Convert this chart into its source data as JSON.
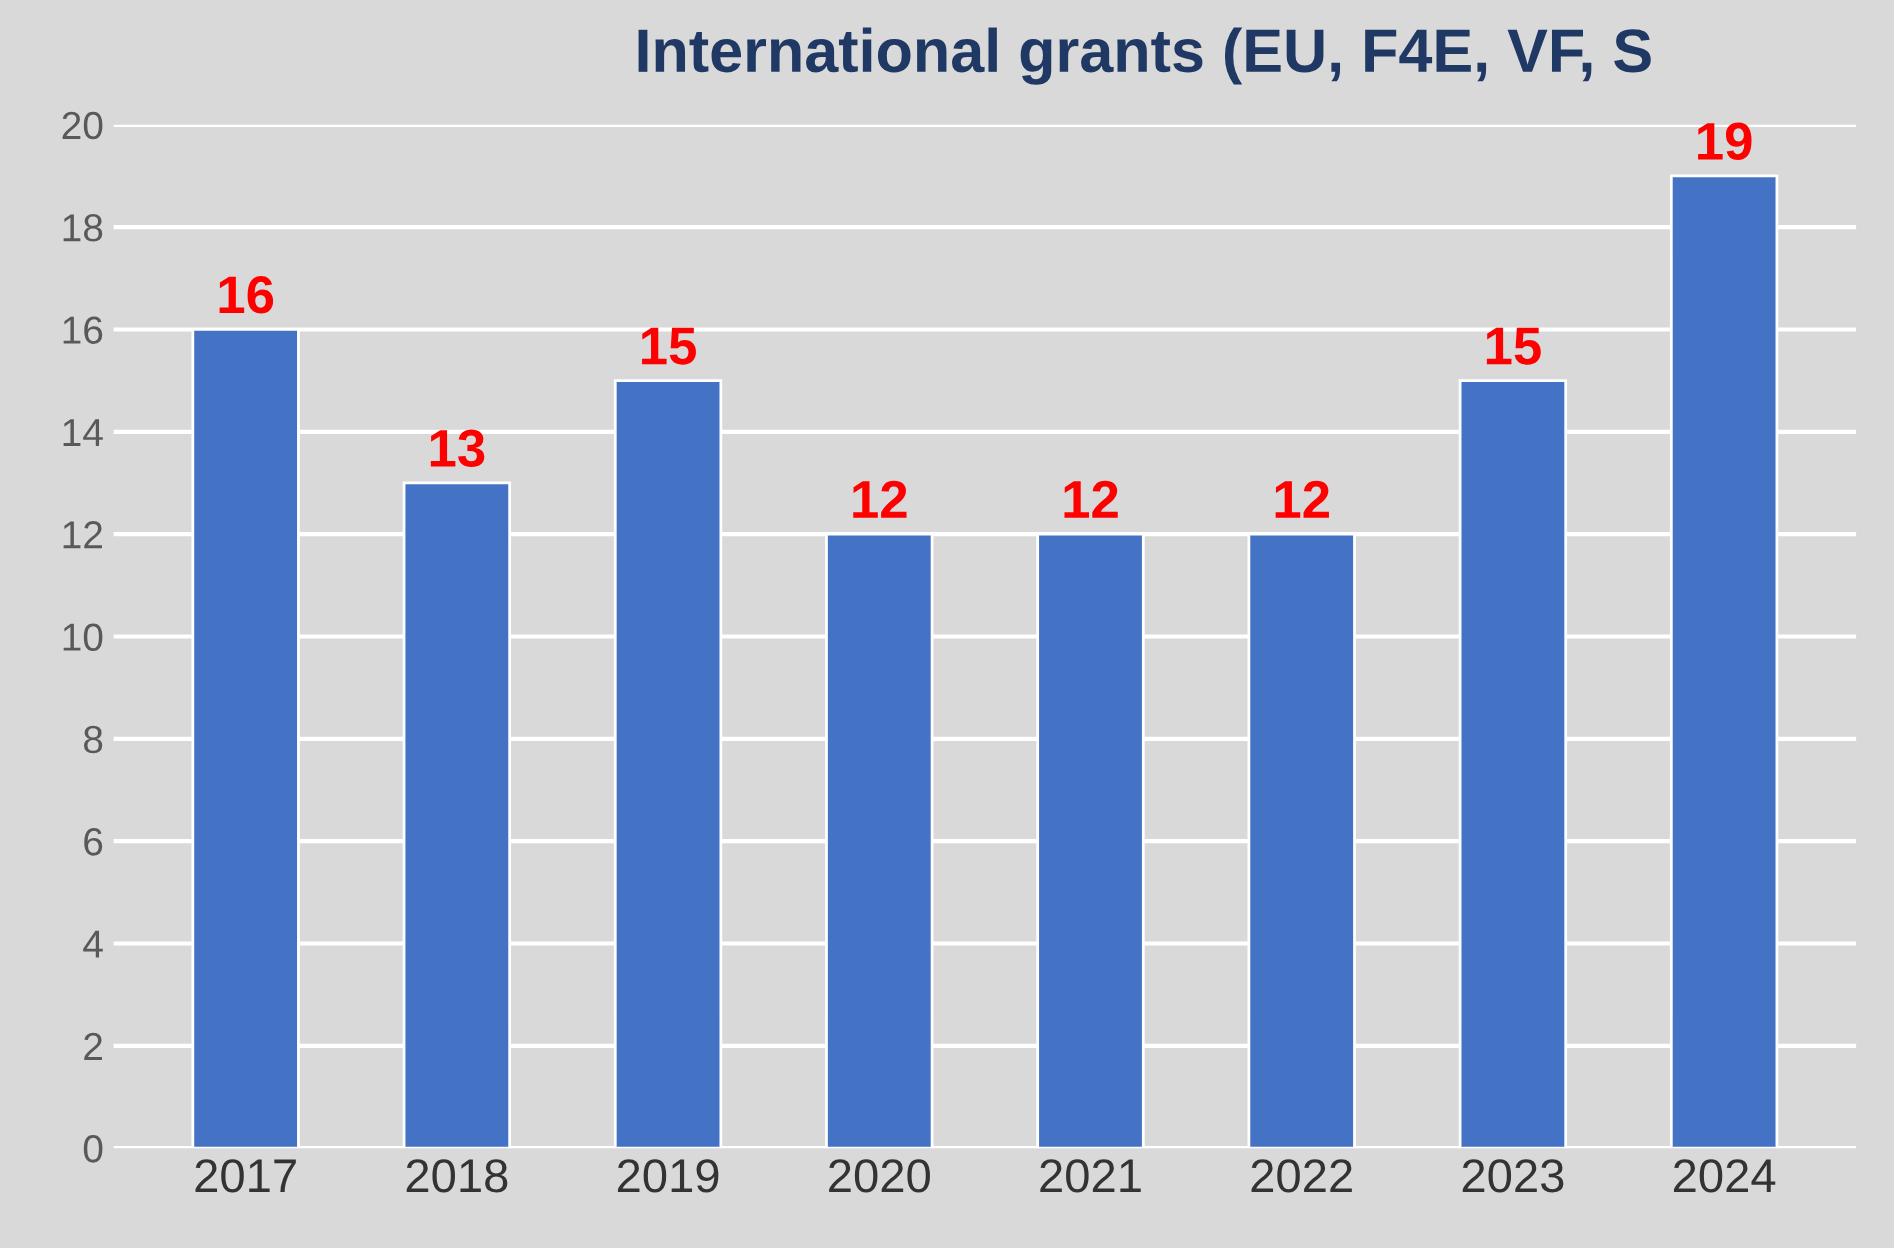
{
  "chart_data": {
    "type": "bar",
    "title": "International grants (EU, F4E, VF, S",
    "categories": [
      "2017",
      "2018",
      "2019",
      "2020",
      "2021",
      "2022",
      "2023",
      "2024"
    ],
    "values": [
      16,
      13,
      15,
      12,
      12,
      12,
      15,
      19
    ],
    "color": "#4472c4",
    "data_labels": true,
    "ylim": [
      0,
      20
    ],
    "yticks": [
      0,
      2,
      4,
      6,
      8,
      10,
      12,
      14,
      16,
      18,
      20
    ],
    "grid": "y"
  }
}
